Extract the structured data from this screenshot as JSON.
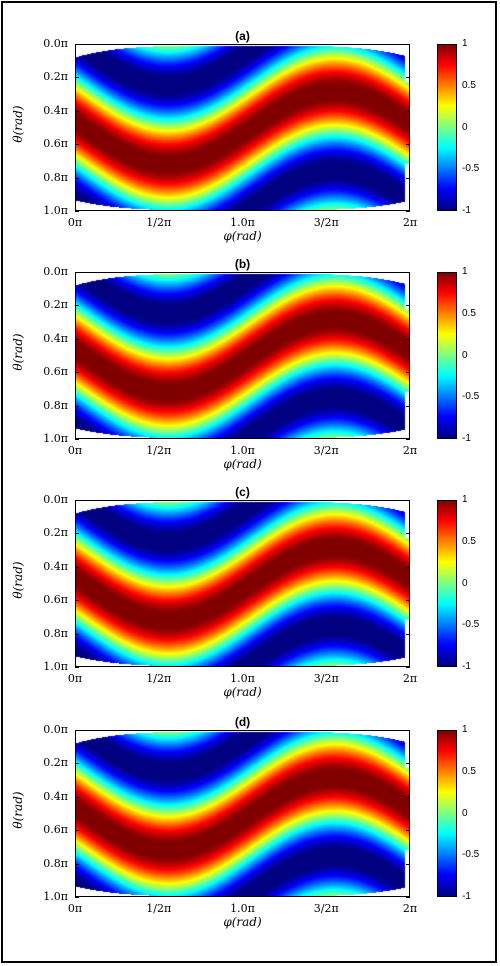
{
  "chart_data": [
    {
      "type": "heatmap",
      "title": "(a)",
      "xlabel": "φ(rad)",
      "ylabel": "θ(rad)",
      "x_ticks": [
        "0π",
        "1/2π",
        "1.0π",
        "3/2π",
        "2π"
      ],
      "y_ticks": [
        "0.0π",
        "0.2π",
        "0.4π",
        "0.6π",
        "0.8π",
        "1.0π"
      ],
      "xlim": [
        0,
        2
      ],
      "ylim": [
        0,
        1
      ],
      "colorbar_ticks": [
        "1",
        "0.5",
        "0",
        "-0.5",
        "-1"
      ],
      "colorbar_range": [
        -1,
        1
      ],
      "colormap": "jet",
      "grid": false
    },
    {
      "type": "heatmap",
      "title": "(b)",
      "xlabel": "φ(rad)",
      "ylabel": "θ(rad)",
      "x_ticks": [
        "0π",
        "1/2π",
        "1.0π",
        "3/2π",
        "2π"
      ],
      "y_ticks": [
        "0.0π",
        "0.2π",
        "0.4π",
        "0.6π",
        "0.8π",
        "1.0π"
      ],
      "xlim": [
        0,
        2
      ],
      "ylim": [
        0,
        1
      ],
      "colorbar_ticks": [
        "1",
        "0.5",
        "0",
        "-0.5",
        "-1"
      ],
      "colorbar_range": [
        -1,
        1
      ],
      "colormap": "jet",
      "grid": false
    },
    {
      "type": "heatmap",
      "title": "(c)",
      "xlabel": "φ(rad)",
      "ylabel": "θ(rad)",
      "x_ticks": [
        "0π",
        "1/2π",
        "1.0π",
        "3/2π",
        "2π"
      ],
      "y_ticks": [
        "0.0π",
        "0.2π",
        "0.4π",
        "0.6π",
        "0.8π",
        "1.0π"
      ],
      "xlim": [
        0,
        2
      ],
      "ylim": [
        0,
        1
      ],
      "colorbar_ticks": [
        "1",
        "0.5",
        "0",
        "-0.5",
        "-1"
      ],
      "colorbar_range": [
        -1,
        1
      ],
      "colormap": "jet",
      "grid": false
    },
    {
      "type": "heatmap",
      "title": "(d)",
      "xlabel": "φ(rad)",
      "ylabel": "θ(rad)",
      "x_ticks": [
        "0π",
        "1/2π",
        "1.0π",
        "3/2π",
        "2π"
      ],
      "y_ticks": [
        "0.0π",
        "0.2π",
        "0.4π",
        "0.6π",
        "0.8π",
        "1.0π"
      ],
      "xlim": [
        0,
        2
      ],
      "ylim": [
        0,
        1
      ],
      "colorbar_ticks": [
        "1",
        "0.5",
        "0",
        "-0.5",
        "-1"
      ],
      "colorbar_range": [
        -1,
        1
      ],
      "colormap": "jet",
      "grid": false
    }
  ]
}
